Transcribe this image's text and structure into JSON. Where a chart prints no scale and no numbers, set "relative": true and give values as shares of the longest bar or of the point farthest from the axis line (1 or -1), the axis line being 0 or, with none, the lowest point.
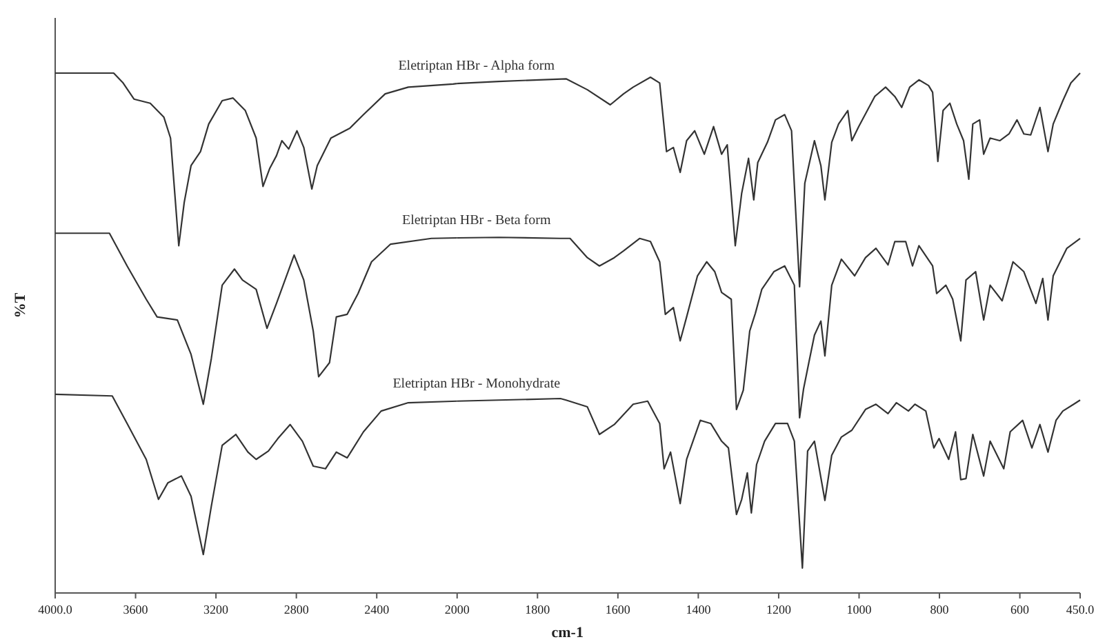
{
  "chart_data": [
    {
      "type": "line",
      "relative": true,
      "ylabel": "%T",
      "xlim": [
        4000,
        2000
      ],
      "xticks": [
        {
          "value": 4000,
          "label": "4000.0"
        },
        3600,
        3200,
        2800,
        2400,
        2000
      ],
      "legend": false,
      "marker": "none",
      "line_style": "solid",
      "series": [
        {
          "color": "#333333",
          "x": [
            4000,
            3709,
            3662,
            3608,
            3527,
            3459,
            3426,
            3405,
            3385,
            3358,
            3324,
            3277,
            3236,
            3169,
            3115,
            3054,
            3000,
            2966,
            2932,
            2899,
            2872,
            2838,
            2797,
            2763,
            2723,
            2696,
            2628,
            2534,
            2466,
            2358,
            2243,
            2020,
            2000
          ],
          "values": [
            1.0,
            1.0,
            0.981,
            0.95,
            0.942,
            0.915,
            0.875,
            0.769,
            0.668,
            0.751,
            0.822,
            0.849,
            0.902,
            0.947,
            0.952,
            0.928,
            0.875,
            0.782,
            0.817,
            0.841,
            0.87,
            0.854,
            0.889,
            0.857,
            0.777,
            0.822,
            0.875,
            0.894,
            0.92,
            0.96,
            0.973,
            0.979,
            0.98
          ]
        },
        {
          "color": "#333333",
          "x": [
            4000,
            3730,
            3642,
            3547,
            3493,
            3392,
            3324,
            3263,
            3223,
            3169,
            3108,
            3068,
            3000,
            2946,
            2899,
            2811,
            2763,
            2716,
            2689,
            2635,
            2601,
            2547,
            2493,
            2426,
            2331,
            2128,
            2000
          ],
          "values": [
            0.692,
            0.692,
            0.629,
            0.565,
            0.531,
            0.525,
            0.459,
            0.363,
            0.451,
            0.592,
            0.623,
            0.602,
            0.584,
            0.509,
            0.557,
            0.65,
            0.602,
            0.504,
            0.416,
            0.443,
            0.531,
            0.536,
            0.576,
            0.637,
            0.671,
            0.682,
            0.683
          ]
        },
        {
          "color": "#333333",
          "x": [
            4000,
            3716,
            3642,
            3547,
            3486,
            3439,
            3372,
            3324,
            3263,
            3223,
            3169,
            3101,
            3041,
            3000,
            2939,
            2892,
            2831,
            2770,
            2716,
            2655,
            2601,
            2547,
            2466,
            2378,
            2243,
            2000
          ],
          "values": [
            0.382,
            0.379,
            0.326,
            0.257,
            0.18,
            0.212,
            0.225,
            0.186,
            0.074,
            0.167,
            0.284,
            0.305,
            0.271,
            0.257,
            0.273,
            0.297,
            0.324,
            0.292,
            0.244,
            0.239,
            0.271,
            0.26,
            0.31,
            0.35,
            0.366,
            0.369
          ]
        }
      ]
    },
    {
      "type": "line",
      "relative": true,
      "xlabel": "cm-1",
      "xlim": [
        2000,
        450
      ],
      "xticks": [
        1800,
        1600,
        1400,
        1200,
        1000,
        800,
        600,
        {
          "value": 450,
          "label": "450.0"
        }
      ],
      "legend": false,
      "marker": "none",
      "line_style": "solid",
      "series": [
        {
          "name": "Eletriptan HBr - Alpha form",
          "color": "#333333",
          "x": [
            2000,
            1896,
            1729,
            1676,
            1619,
            1586,
            1562,
            1519,
            1496,
            1479,
            1462,
            1445,
            1429,
            1409,
            1385,
            1362,
            1342,
            1328,
            1308,
            1292,
            1275,
            1262,
            1252,
            1228,
            1208,
            1185,
            1168,
            1148,
            1135,
            1111,
            1095,
            1085,
            1068,
            1051,
            1028,
            1018,
            1001,
            961,
            934,
            911,
            894,
            874,
            851,
            827,
            817,
            804,
            791,
            774,
            757,
            740,
            727,
            717,
            700,
            690,
            674,
            650,
            627,
            607,
            590,
            573,
            550,
            530,
            517,
            493,
            473,
            450
          ],
          "values": [
            0.98,
            0.984,
            0.989,
            0.968,
            0.939,
            0.96,
            0.973,
            0.992,
            0.981,
            0.849,
            0.857,
            0.809,
            0.87,
            0.889,
            0.844,
            0.897,
            0.844,
            0.862,
            0.668,
            0.769,
            0.836,
            0.756,
            0.828,
            0.867,
            0.91,
            0.92,
            0.889,
            0.589,
            0.788,
            0.87,
            0.822,
            0.756,
            0.867,
            0.902,
            0.928,
            0.87,
            0.897,
            0.955,
            0.973,
            0.955,
            0.934,
            0.973,
            0.987,
            0.976,
            0.963,
            0.83,
            0.928,
            0.942,
            0.902,
            0.87,
            0.796,
            0.902,
            0.91,
            0.844,
            0.875,
            0.87,
            0.883,
            0.91,
            0.883,
            0.881,
            0.934,
            0.849,
            0.902,
            0.947,
            0.981,
            1.0
          ]
        },
        {
          "name": "Eletriptan HBr - Beta form",
          "color": "#333333",
          "x": [
            2000,
            1896,
            1743,
            1719,
            1676,
            1646,
            1609,
            1586,
            1546,
            1519,
            1496,
            1482,
            1462,
            1445,
            1429,
            1402,
            1379,
            1359,
            1342,
            1318,
            1305,
            1288,
            1272,
            1258,
            1242,
            1212,
            1185,
            1161,
            1148,
            1138,
            1125,
            1111,
            1095,
            1085,
            1068,
            1044,
            1011,
            984,
            958,
            928,
            911,
            884,
            867,
            851,
            817,
            807,
            784,
            767,
            747,
            734,
            710,
            690,
            674,
            644,
            617,
            590,
            560,
            543,
            530,
            517,
            483,
            450
          ],
          "values": [
            0.683,
            0.684,
            0.682,
            0.682,
            0.645,
            0.629,
            0.645,
            0.658,
            0.682,
            0.676,
            0.637,
            0.536,
            0.549,
            0.485,
            0.531,
            0.61,
            0.637,
            0.618,
            0.578,
            0.565,
            0.353,
            0.39,
            0.504,
            0.538,
            0.584,
            0.618,
            0.629,
            0.592,
            0.337,
            0.393,
            0.443,
            0.496,
            0.523,
            0.456,
            0.592,
            0.642,
            0.61,
            0.645,
            0.663,
            0.631,
            0.676,
            0.676,
            0.629,
            0.668,
            0.629,
            0.576,
            0.592,
            0.565,
            0.485,
            0.602,
            0.618,
            0.525,
            0.592,
            0.562,
            0.637,
            0.618,
            0.557,
            0.605,
            0.525,
            0.61,
            0.663,
            0.682
          ]
        },
        {
          "name": "Eletriptan HBr - Monohydrate",
          "color": "#333333",
          "x": [
            2000,
            1896,
            1743,
            1729,
            1676,
            1646,
            1609,
            1562,
            1526,
            1496,
            1485,
            1469,
            1445,
            1429,
            1395,
            1369,
            1342,
            1325,
            1305,
            1292,
            1278,
            1268,
            1255,
            1235,
            1208,
            1178,
            1161,
            1141,
            1128,
            1111,
            1085,
            1068,
            1044,
            1018,
            984,
            958,
            928,
            907,
            877,
            861,
            834,
            814,
            801,
            777,
            760,
            747,
            734,
            717,
            690,
            674,
            640,
            624,
            593,
            570,
            550,
            530,
            510,
            493,
            466,
            450
          ],
          "values": [
            0.369,
            0.371,
            0.374,
            0.371,
            0.358,
            0.305,
            0.324,
            0.363,
            0.369,
            0.326,
            0.239,
            0.271,
            0.172,
            0.257,
            0.332,
            0.326,
            0.292,
            0.279,
            0.151,
            0.18,
            0.231,
            0.154,
            0.247,
            0.292,
            0.326,
            0.326,
            0.292,
            0.048,
            0.273,
            0.292,
            0.178,
            0.265,
            0.3,
            0.313,
            0.353,
            0.363,
            0.345,
            0.366,
            0.35,
            0.363,
            0.35,
            0.279,
            0.297,
            0.257,
            0.31,
            0.218,
            0.22,
            0.305,
            0.225,
            0.292,
            0.239,
            0.31,
            0.332,
            0.279,
            0.324,
            0.271,
            0.332,
            0.35,
            0.363,
            0.371
          ]
        }
      ]
    }
  ]
}
